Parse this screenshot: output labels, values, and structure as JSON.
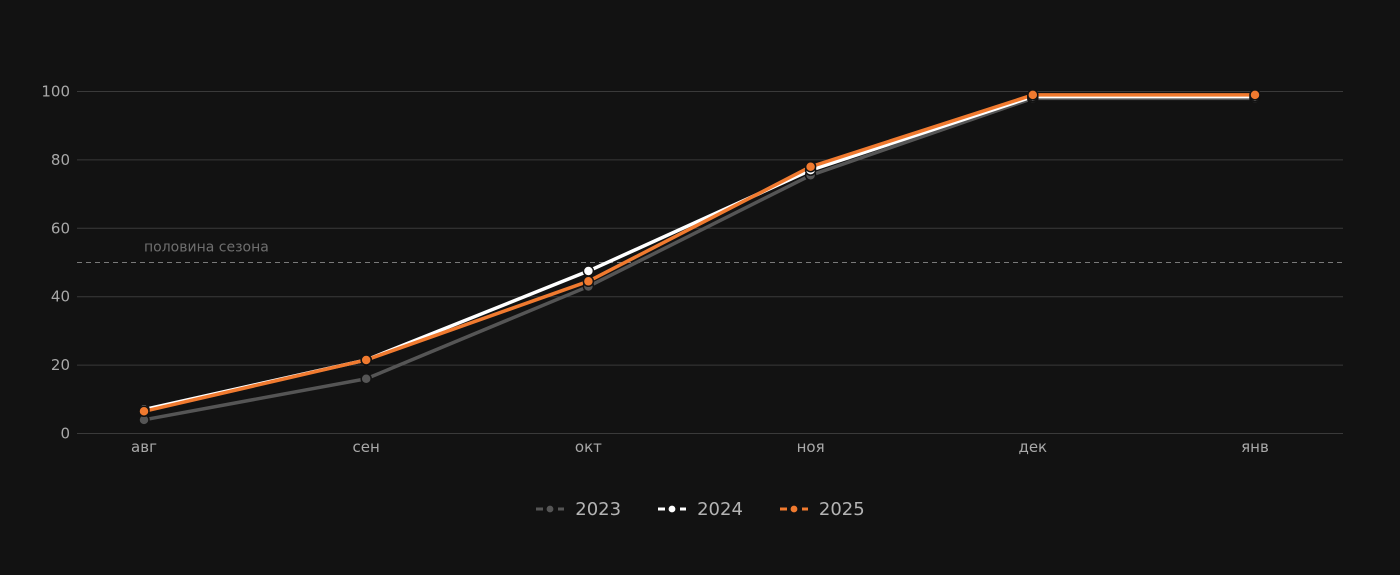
{
  "chart_data": {
    "type": "line",
    "categories": [
      "авг",
      "сен",
      "окт",
      "ноя",
      "дек",
      "янв"
    ],
    "ylim": [
      0,
      100
    ],
    "yticks": [
      0,
      20,
      40,
      60,
      80,
      100
    ],
    "grid": true,
    "legend_position": "bottom-center",
    "reference_line": {
      "value": 50,
      "label": "половина сезона",
      "style": "dashed"
    },
    "series": [
      {
        "name": "2023",
        "color": "#555555",
        "values": [
          4,
          16,
          43,
          75.5,
          98,
          98
        ]
      },
      {
        "name": "2024",
        "color": "#ffffff",
        "values": [
          7,
          21.5,
          47.5,
          77,
          98.5,
          98.5
        ]
      },
      {
        "name": "2025",
        "color": "#f07a2f",
        "values": [
          6.5,
          21.5,
          44.5,
          78,
          99,
          99
        ]
      }
    ]
  }
}
